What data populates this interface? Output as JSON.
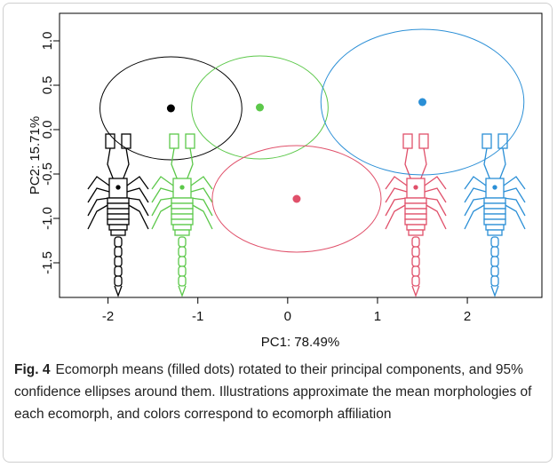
{
  "chart_data": {
    "type": "scatter",
    "xlabel": "PC1: 78.49%",
    "ylabel": "PC2: 15.71%",
    "xlim": [
      -2.54,
      2.83
    ],
    "ylim": [
      -1.89,
      1.31
    ],
    "xticks": [
      -2,
      -1,
      0,
      1,
      2
    ],
    "yticks": [
      {
        "value": 1,
        "label": "1.0"
      },
      0.5,
      {
        "value": 0,
        "label": "0.0"
      },
      -0.5,
      {
        "value": -1,
        "label": "-1.0"
      },
      -1.5
    ],
    "series": [
      {
        "color": "#000000",
        "x": -1.3,
        "y": 0.24,
        "x_radius": 0.79,
        "y_radius": 0.58
      },
      {
        "color": "#5cc84a",
        "x": -0.31,
        "y": 0.25,
        "x_radius": 0.76,
        "y_radius": 0.58
      },
      {
        "color": "#e0506a",
        "x": 0.1,
        "y": -0.78,
        "x_radius": 0.94,
        "y_radius": 0.6
      },
      {
        "color": "#2b8fd6",
        "x": 1.5,
        "y": 0.31,
        "x_radius": 1.13,
        "y_radius": 0.82
      }
    ]
  },
  "caption": {
    "label": "Fig. 4",
    "text": "Ecomorph means (filled dots) rotated to their principal components, and 95% confidence ellipses around them. Illustrations approximate the mean morphologies of each ecomorph, and colors correspond to ecomorph affiliation"
  }
}
